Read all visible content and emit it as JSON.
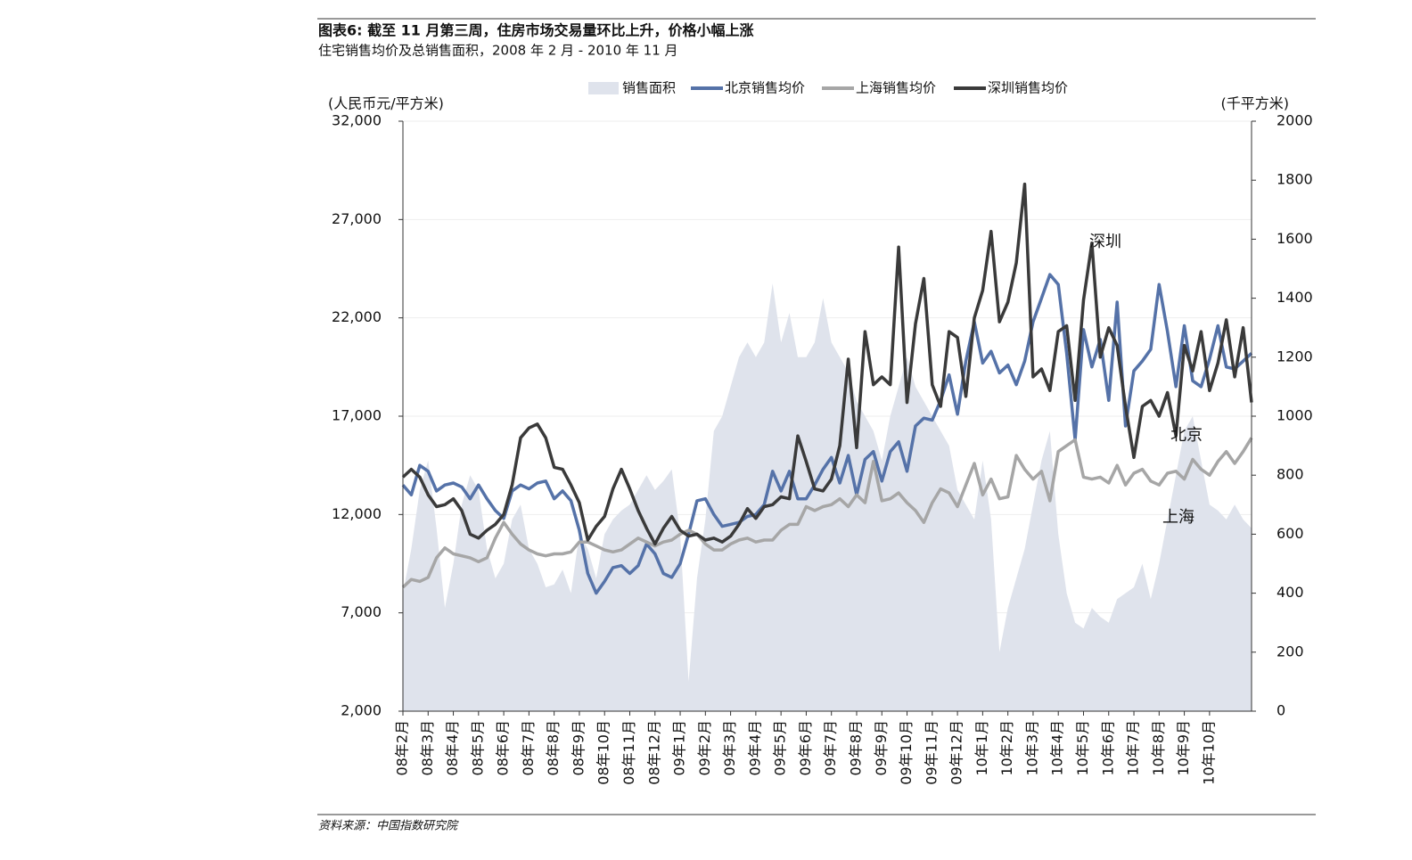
{
  "header": {
    "title": "图表6: 截至 11 月第三周，住房市场交易量环比上升，价格小幅上涨",
    "subtitle": "住宅销售均价及总销售面积，2008 年 2 月 - 2010 年 11 月"
  },
  "footer": {
    "source": "资料来源：中国指数研究院"
  },
  "chart_data": {
    "type": "line",
    "y_label": "(人民币元/平方米)",
    "y2_label": "(千平方米)",
    "annotations": [
      {
        "text": "深圳"
      },
      {
        "text": "北京"
      },
      {
        "text": "上海"
      }
    ],
    "ylim": [
      2000,
      32000
    ],
    "yticks": [
      {
        "value": 2000,
        "label": "2,000"
      },
      {
        "value": 7000,
        "label": "7,000"
      },
      {
        "value": 12000,
        "label": "12,000"
      },
      {
        "value": 17000,
        "label": "17,000"
      },
      {
        "value": 22000,
        "label": "22,000"
      },
      {
        "value": 27000,
        "label": "27,000"
      },
      {
        "value": 32000,
        "label": "32,000"
      }
    ],
    "y2lim": [
      0,
      2000
    ],
    "y2ticks": [
      0,
      200,
      400,
      600,
      800,
      1000,
      1200,
      1400,
      1600,
      1800,
      2000
    ],
    "grid": true,
    "categories": [
      "08年2月",
      null,
      null,
      "08年3月",
      null,
      null,
      "08年4月",
      null,
      null,
      "08年5月",
      null,
      null,
      "08年6月",
      null,
      null,
      "08年7月",
      null,
      null,
      "08年8月",
      null,
      null,
      "08年9月",
      null,
      null,
      "08年10月",
      null,
      null,
      "08年11月",
      null,
      null,
      "08年12月",
      null,
      null,
      "09年1月",
      null,
      null,
      "09年2月",
      null,
      null,
      "09年3月",
      null,
      null,
      "09年4月",
      null,
      null,
      "09年5月",
      null,
      null,
      "09年6月",
      null,
      null,
      "09年7月",
      null,
      null,
      "09年8月",
      null,
      null,
      "09年9月",
      null,
      null,
      "09年10月",
      null,
      null,
      "09年11月",
      null,
      null,
      "09年12月",
      null,
      null,
      "10年1月",
      null,
      null,
      "10年2月",
      null,
      null,
      "10年3月",
      null,
      null,
      "10年4月",
      null,
      null,
      "10年5月",
      null,
      null,
      "10年6月",
      null,
      null,
      "10年7月",
      null,
      null,
      "10年8月",
      null,
      null,
      "10年9月",
      null,
      null,
      "10年10月",
      null,
      null,
      null,
      null,
      null
    ],
    "series": [
      {
        "name": "销售面积",
        "type": "area",
        "axis": "y2",
        "color": "#dfe3ec",
        "values": [
          400,
          550,
          750,
          850,
          620,
          350,
          500,
          700,
          800,
          750,
          550,
          450,
          500,
          650,
          700,
          550,
          500,
          420,
          430,
          480,
          400,
          600,
          550,
          450,
          600,
          650,
          680,
          700,
          750,
          800,
          750,
          780,
          820,
          600,
          100,
          450,
          650,
          950,
          1000,
          1100,
          1200,
          1250,
          1200,
          1250,
          1450,
          1250,
          1350,
          1200,
          1200,
          1250,
          1400,
          1250,
          1200,
          1150,
          1050,
          1000,
          950,
          850,
          1000,
          1100,
          1200,
          1100,
          1050,
          1000,
          950,
          900,
          750,
          700,
          650,
          850,
          650,
          200,
          350,
          450,
          550,
          700,
          850,
          950,
          600,
          400,
          300,
          280,
          350,
          320,
          300,
          380,
          400,
          420,
          500,
          380,
          500,
          650,
          800,
          950,
          1000,
          850,
          700,
          680,
          650,
          700,
          650,
          620
        ]
      },
      {
        "name": "北京销售均价",
        "type": "line",
        "color": "#5572a8",
        "values": [
          13500,
          13000,
          14500,
          14200,
          13200,
          13500,
          13600,
          13400,
          12800,
          13500,
          12800,
          12200,
          11800,
          13200,
          13500,
          13300,
          13600,
          13700,
          12800,
          13200,
          12700,
          11200,
          9000,
          8000,
          8600,
          9300,
          9400,
          9000,
          9400,
          10500,
          10000,
          9000,
          8800,
          9500,
          11000,
          12700,
          12800,
          12000,
          11400,
          11500,
          11600,
          11900,
          12000,
          12500,
          14200,
          13200,
          14200,
          12800,
          12800,
          13500,
          14300,
          14900,
          13600,
          15000,
          13000,
          14800,
          15200,
          13700,
          15200,
          15700,
          14200,
          16500,
          16900,
          16800,
          17800,
          19100,
          17100,
          19800,
          21800,
          19700,
          20300,
          19200,
          19600,
          18600,
          19800,
          21800,
          23000,
          24200,
          23700,
          20200,
          15800,
          21400,
          19500,
          20900,
          17800,
          22800,
          16500,
          19300,
          19800,
          20400,
          23700,
          21300,
          18500,
          21600,
          18800,
          18500,
          19900,
          21600,
          19500,
          19400,
          19800,
          20200
        ]
      },
      {
        "name": "上海销售均价",
        "type": "line",
        "color": "#a6a6a6",
        "values": [
          8300,
          8700,
          8600,
          8800,
          9800,
          10300,
          10000,
          9900,
          9800,
          9600,
          9800,
          10800,
          11600,
          11000,
          10500,
          10200,
          10000,
          9900,
          10000,
          10000,
          10100,
          10600,
          10600,
          10400,
          10200,
          10100,
          10200,
          10500,
          10800,
          10600,
          10400,
          10600,
          10700,
          11000,
          11200,
          11000,
          10500,
          10200,
          10200,
          10500,
          10700,
          10800,
          10600,
          10700,
          10700,
          11200,
          11500,
          11500,
          12400,
          12200,
          12400,
          12500,
          12800,
          12400,
          13000,
          12600,
          14700,
          12700,
          12800,
          13100,
          12600,
          12200,
          11600,
          12600,
          13300,
          13100,
          12400,
          13500,
          14600,
          13000,
          13800,
          12800,
          12900,
          15000,
          14300,
          13800,
          14200,
          12700,
          15200,
          15500,
          15800,
          13900,
          13800,
          13900,
          13600,
          14500,
          13500,
          14100,
          14300,
          13700,
          13500,
          14100,
          14200,
          13800,
          14800,
          14300,
          14000,
          14700,
          15200,
          14600,
          15200,
          15900
        ]
      },
      {
        "name": "深圳销售均价",
        "type": "line",
        "color": "#3a3a3a",
        "values": [
          13900,
          14300,
          13900,
          13000,
          12400,
          12500,
          12800,
          12200,
          11000,
          10800,
          11200,
          11500,
          12000,
          13500,
          15900,
          16400,
          16600,
          15900,
          14400,
          14300,
          13500,
          12600,
          10700,
          11400,
          11900,
          13300,
          14300,
          13300,
          12200,
          11300,
          10500,
          11300,
          11900,
          11200,
          10900,
          11000,
          10700,
          10800,
          10600,
          10900,
          11500,
          12300,
          11800,
          12400,
          12500,
          12900,
          12800,
          16000,
          14700,
          13300,
          13200,
          13800,
          15500,
          19900,
          15400,
          21300,
          18600,
          19000,
          18600,
          25600,
          17700,
          21700,
          24000,
          18600,
          17500,
          21300,
          21000,
          18000,
          22000,
          23400,
          26400,
          21800,
          22800,
          24800,
          28800,
          19000,
          19400,
          18300,
          21300,
          21600,
          17800,
          22900,
          25800,
          20000,
          21500,
          20600,
          17500,
          14900,
          17500,
          17800,
          17000,
          18200,
          16000,
          20600,
          19300,
          21300,
          18300,
          19700,
          21900,
          19000,
          21500,
          17700
        ]
      }
    ]
  }
}
